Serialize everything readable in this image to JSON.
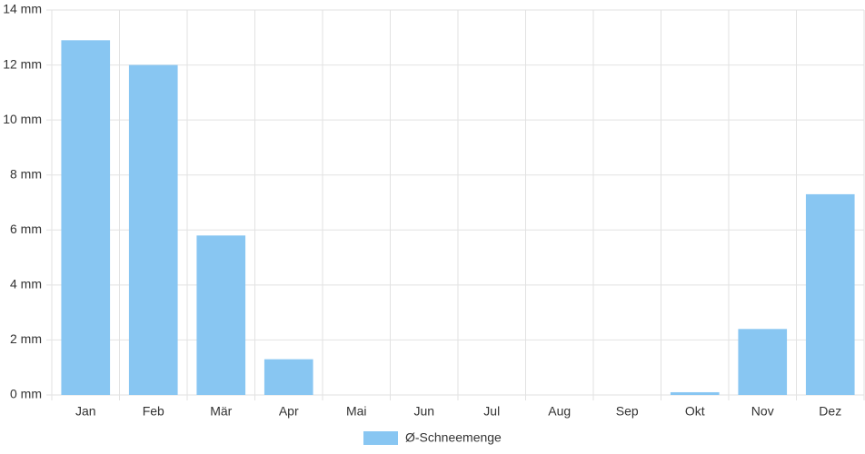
{
  "chart_data": {
    "type": "bar",
    "categories": [
      "Jan",
      "Feb",
      "Mär",
      "Apr",
      "Mai",
      "Jun",
      "Jul",
      "Aug",
      "Sep",
      "Okt",
      "Nov",
      "Dez"
    ],
    "series": [
      {
        "name": "Ø-Schneemenge",
        "color": "#88c6f2",
        "values": [
          12.9,
          12.0,
          5.8,
          1.3,
          0,
          0,
          0,
          0,
          0,
          0.1,
          2.4,
          7.3
        ]
      }
    ],
    "ylim": [
      0,
      14
    ],
    "yticks": [
      {
        "value": 0,
        "label": "0 mm"
      },
      {
        "value": 2,
        "label": "2 mm"
      },
      {
        "value": 4,
        "label": "4 mm"
      },
      {
        "value": 6,
        "label": "6 mm"
      },
      {
        "value": 8,
        "label": "8 mm"
      },
      {
        "value": 10,
        "label": "10 mm"
      },
      {
        "value": 12,
        "label": "12 mm"
      },
      {
        "value": 14,
        "label": "14 mm"
      }
    ],
    "grid": true,
    "legend": "bottom"
  }
}
